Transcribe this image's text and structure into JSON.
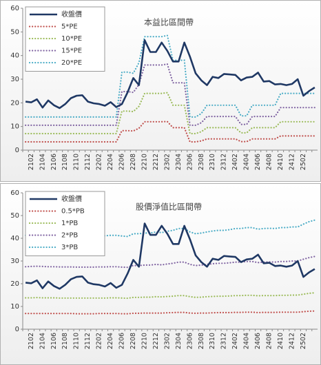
{
  "chart_data": [
    {
      "type": "line",
      "title": "本益比區間帶",
      "legend": "upper left",
      "grid": false,
      "categories": [
        null,
        "2102",
        null,
        "2104",
        null,
        "2106",
        null,
        "2108",
        null,
        "2110",
        null,
        "2112",
        null,
        "2202",
        null,
        "2204",
        null,
        "2206",
        null,
        "2208",
        null,
        "2210",
        null,
        "2212",
        null,
        "2302",
        null,
        "2304",
        null,
        "2306",
        null,
        "2308",
        null,
        "2310",
        null,
        "2312",
        null,
        "2402",
        null,
        "2404",
        null,
        "2406",
        null,
        "2408",
        null,
        "2410",
        null,
        "2412",
        null,
        "2502",
        null,
        null
      ],
      "ylim": [
        0,
        60
      ],
      "yticks": [
        0,
        10,
        20,
        30,
        40,
        50,
        60
      ],
      "series": [
        {
          "name": "收盤價",
          "color": "#1f3864",
          "values": [
            20.5,
            20.2,
            21.5,
            18,
            21,
            19,
            17.8,
            19.5,
            22,
            23,
            23.2,
            20.5,
            19.8,
            19.5,
            18.8,
            20.3,
            18.2,
            19.5,
            24.5,
            30.5,
            27.5,
            46.5,
            41.5,
            41.5,
            45.5,
            42,
            37.5,
            37.5,
            45.5,
            39.5,
            32.5,
            29.5,
            27.5,
            31,
            30.5,
            32.2,
            32,
            31.8,
            29.5,
            30.7,
            31,
            32.8,
            29,
            29.2,
            27.8,
            28,
            27.5,
            28,
            30,
            23,
            25,
            26.5
          ]
        },
        {
          "name": "5*PE",
          "color": "#c0504d",
          "values": [
            3.5,
            3.5,
            3.5,
            3.5,
            3.5,
            3.5,
            3.5,
            3.5,
            3.5,
            3.5,
            3.5,
            3.5,
            3.5,
            3.5,
            3.5,
            3.5,
            3.5,
            8.25,
            8.25,
            8.1,
            9.25,
            12,
            12,
            12,
            12,
            12.1,
            9.5,
            9.5,
            9.5,
            3.5,
            3.5,
            3.9,
            4.75,
            4.75,
            4.75,
            4.75,
            4.75,
            4.75,
            3.6,
            3.6,
            4.75,
            4.75,
            4.75,
            4.75,
            4.75,
            6,
            6,
            6,
            6,
            6,
            6,
            6
          ]
        },
        {
          "name": "10*PE",
          "color": "#9bbb59",
          "values": [
            7,
            7,
            7,
            7,
            7,
            7,
            7,
            7,
            7,
            7,
            7,
            7,
            7,
            7,
            7,
            7,
            7,
            16.5,
            16.5,
            16.3,
            18.5,
            24,
            24,
            24,
            24,
            24.3,
            19,
            19,
            19,
            7,
            7,
            7.8,
            9.5,
            9.5,
            9.5,
            9.5,
            9.5,
            9.5,
            7.3,
            7.3,
            9.5,
            9.5,
            9.5,
            9.5,
            9.5,
            12,
            12,
            12,
            12,
            12,
            12,
            12
          ]
        },
        {
          "name": "15*PE",
          "color": "#8064a2",
          "values": [
            10.5,
            10.5,
            10.5,
            10.5,
            10.5,
            10.5,
            10.5,
            10.5,
            10.5,
            10.5,
            10.5,
            10.5,
            10.5,
            10.5,
            10.5,
            10.5,
            10.5,
            24.75,
            24.75,
            24.4,
            27.75,
            36,
            36,
            36,
            36,
            36.4,
            28.5,
            28.5,
            28.5,
            10.5,
            10.5,
            11.6,
            14.25,
            14.25,
            14.25,
            14.25,
            14.25,
            14.25,
            10.9,
            10.9,
            14.25,
            14.25,
            14.25,
            14.25,
            14.25,
            18,
            18,
            18,
            18,
            18,
            18,
            18
          ]
        },
        {
          "name": "20*PE",
          "color": "#4bacc6",
          "values": [
            14,
            14,
            14,
            14,
            14,
            14,
            14,
            14,
            14,
            14,
            14,
            14,
            14,
            14,
            14,
            14,
            14,
            33,
            33,
            32.5,
            37,
            48,
            48,
            48,
            48,
            48.5,
            38,
            38,
            38,
            14,
            14,
            15.5,
            19,
            19,
            19,
            19,
            19,
            19,
            14.5,
            14.5,
            19,
            19,
            19,
            19,
            19,
            24,
            24,
            24,
            24,
            24,
            24,
            24
          ]
        }
      ]
    },
    {
      "type": "line",
      "title": "股價淨值比區間帶",
      "legend": "upper left",
      "grid": false,
      "categories": [
        null,
        "2102",
        null,
        "2104",
        null,
        "2106",
        null,
        "2108",
        null,
        "2110",
        null,
        "2112",
        null,
        "2202",
        null,
        "2204",
        null,
        "2206",
        null,
        "2208",
        null,
        "2210",
        null,
        "2212",
        null,
        "2302",
        null,
        "2304",
        null,
        "2306",
        null,
        "2308",
        null,
        "2310",
        null,
        "2312",
        null,
        "2402",
        null,
        "2404",
        null,
        "2406",
        null,
        "2408",
        null,
        "2410",
        null,
        "2412",
        null,
        "2502",
        null,
        null
      ],
      "ylim": [
        0,
        60
      ],
      "yticks": [
        0,
        10,
        20,
        30,
        40,
        50,
        60
      ],
      "series": [
        {
          "name": "收盤價",
          "color": "#1f3864",
          "values": [
            20.5,
            20.2,
            21.5,
            18,
            21,
            19,
            17.8,
            19.5,
            22,
            23,
            23.2,
            20.5,
            19.8,
            19.5,
            18.8,
            20.3,
            18.2,
            19.5,
            24.5,
            30.5,
            27.5,
            46.5,
            41.5,
            41.5,
            45.5,
            42,
            37.5,
            37.5,
            45.5,
            39.5,
            32.5,
            29.5,
            27.5,
            31,
            30.5,
            32.2,
            32,
            31.8,
            29.5,
            30.7,
            31,
            32.8,
            29,
            29.2,
            27.8,
            28,
            27.5,
            28,
            30,
            23,
            25,
            26.5
          ]
        },
        {
          "name": "0.5*PB",
          "color": "#c0504d",
          "values": [
            6.9,
            6.9,
            6.9,
            6.9,
            6.9,
            6.9,
            6.9,
            6.9,
            6.9,
            6.8,
            6.8,
            6.8,
            6.8,
            6.9,
            6.9,
            6.9,
            6.9,
            6.8,
            6.8,
            7,
            7,
            7.1,
            7.1,
            7.1,
            7.1,
            7.2,
            7.3,
            7.4,
            7.4,
            7.1,
            7,
            7.1,
            7.1,
            7.2,
            7.3,
            7.3,
            7.3,
            7.4,
            7.4,
            7.5,
            7.5,
            7.3,
            7.4,
            7.4,
            7.4,
            7.5,
            7.5,
            7.5,
            7.5,
            7.7,
            7.9,
            8
          ]
        },
        {
          "name": "1*PB",
          "color": "#9bbb59",
          "values": [
            13.8,
            13.8,
            13.9,
            13.8,
            13.8,
            13.8,
            13.7,
            13.7,
            13.7,
            13.7,
            13.7,
            13.7,
            13.7,
            13.7,
            13.7,
            13.8,
            13.8,
            13.7,
            13.6,
            14,
            14,
            14.1,
            14.1,
            14.3,
            14.2,
            14.4,
            14.5,
            14.8,
            14.8,
            14.3,
            14,
            14.1,
            14.3,
            14.4,
            14.5,
            14.5,
            14.6,
            14.8,
            14.8,
            14.9,
            14.9,
            14.7,
            14.8,
            14.8,
            14.8,
            14.9,
            14.9,
            15,
            15,
            15.4,
            15.8,
            16
          ]
        },
        {
          "name": "2*PB",
          "color": "#8064a2",
          "values": [
            27.5,
            27.6,
            27.7,
            27.6,
            27.5,
            27.5,
            27.4,
            27.4,
            27.4,
            27.3,
            27.3,
            27.3,
            27.3,
            27.4,
            27.4,
            27.5,
            27.5,
            27.3,
            27.2,
            28,
            28,
            28.2,
            28.2,
            28.5,
            28.3,
            28.7,
            29,
            29.5,
            29.5,
            28.5,
            28,
            28.2,
            28.5,
            28.8,
            29,
            29,
            29.2,
            29.5,
            29.5,
            29.8,
            29.8,
            29.3,
            29.5,
            29.6,
            29.5,
            29.8,
            29.8,
            30,
            30,
            30.8,
            31.5,
            32
          ]
        },
        {
          "name": "3*PB",
          "color": "#4bacc6",
          "values": [
            41.3,
            41.4,
            41.6,
            41.4,
            41.3,
            41.3,
            41.1,
            41.1,
            41.1,
            41,
            41,
            41,
            41,
            41.1,
            41.1,
            41.3,
            41.3,
            41,
            40.8,
            42,
            42,
            42.3,
            42.3,
            42.8,
            42.5,
            43.1,
            43.5,
            44.3,
            44.3,
            42.8,
            42,
            42.3,
            42.8,
            43.2,
            43.5,
            43.5,
            43.8,
            44.3,
            44.3,
            44.7,
            44.7,
            44,
            44.3,
            44.4,
            44.3,
            44.7,
            44.7,
            45,
            45,
            46.2,
            47.3,
            48
          ]
        }
      ]
    }
  ]
}
